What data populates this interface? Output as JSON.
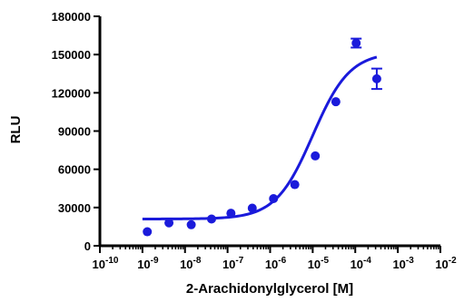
{
  "chart_data": {
    "type": "scatter",
    "title": "",
    "xlabel": "2-Arachidonylglycerol [M]",
    "ylabel": "RLU",
    "x_scale": "log10",
    "xlim": [
      1e-10,
      0.01
    ],
    "ylim": [
      0,
      180000
    ],
    "x_ticks": [
      {
        "base": "10",
        "exp": "-10"
      },
      {
        "base": "10",
        "exp": "-9"
      },
      {
        "base": "10",
        "exp": "-8"
      },
      {
        "base": "10",
        "exp": "-7"
      },
      {
        "base": "10",
        "exp": "-6"
      },
      {
        "base": "10",
        "exp": "-5"
      },
      {
        "base": "10",
        "exp": "-4"
      },
      {
        "base": "10",
        "exp": "-3"
      },
      {
        "base": "10",
        "exp": "-2"
      }
    ],
    "y_ticks": [
      "0",
      "30000",
      "60000",
      "90000",
      "120000",
      "150000",
      "180000"
    ],
    "points": [
      {
        "x": 1.3e-09,
        "y": 11000
      },
      {
        "x": 4.2e-09,
        "y": 18000
      },
      {
        "x": 1.4e-08,
        "y": 16500
      },
      {
        "x": 4.2e-08,
        "y": 21000
      },
      {
        "x": 1.2e-07,
        "y": 25500
      },
      {
        "x": 3.8e-07,
        "y": 29500
      },
      {
        "x": 1.2e-06,
        "y": 37000
      },
      {
        "x": 3.8e-06,
        "y": 48000
      },
      {
        "x": 1.15e-05,
        "y": 70500
      },
      {
        "x": 3.5e-05,
        "y": 113000
      },
      {
        "x": 0.000105,
        "y": 159000,
        "err": 3500
      },
      {
        "x": 0.00032,
        "y": 131000,
        "err": 8000
      }
    ],
    "fit_curve": {
      "model": "sigmoidal dose-response",
      "bottom": 21000,
      "top": 152000,
      "log_ec50": -5.0,
      "hill_slope": 1.0,
      "x_range": [
        1e-09,
        0.00032
      ]
    },
    "grid": false,
    "legend": "none",
    "color": "#1a1adb"
  }
}
